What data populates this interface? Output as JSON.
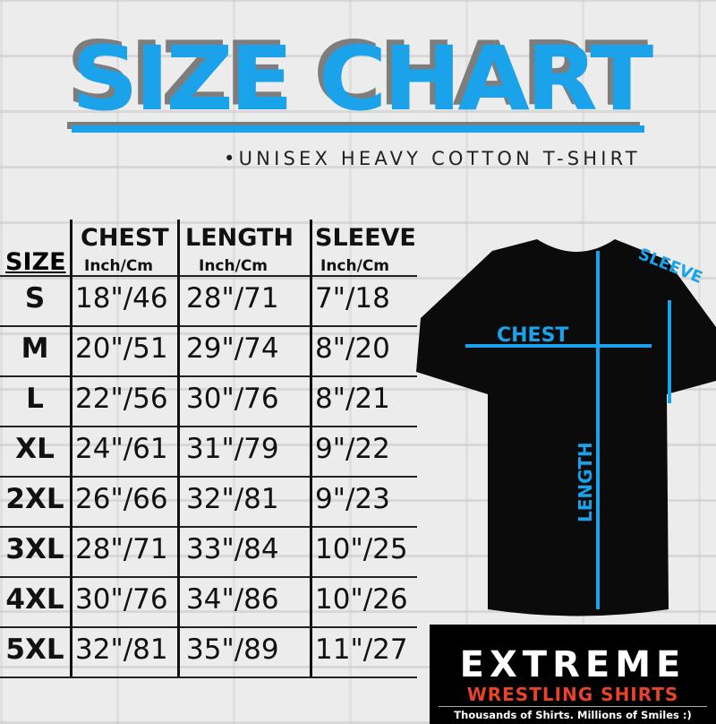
{
  "title": "SIZE CHART",
  "subtitle": "•UNISEX HEAVY COTTON T-SHIRT",
  "accent_color": "#1aa3ea",
  "table": {
    "size_header": "SIZE",
    "columns": [
      {
        "name": "CHEST",
        "unit": "Inch/Cm"
      },
      {
        "name": "LENGTH",
        "unit": "Inch/Cm"
      },
      {
        "name": "SLEEVE",
        "unit": "Inch/Cm"
      }
    ],
    "rows": [
      {
        "size": "S",
        "chest": "18\"/46",
        "length": "28\"/71",
        "sleeve": "7\"/18"
      },
      {
        "size": "M",
        "chest": "20\"/51",
        "length": "29\"/74",
        "sleeve": "8\"/20"
      },
      {
        "size": "L",
        "chest": "22\"/56",
        "length": "30\"/76",
        "sleeve": "8\"/21"
      },
      {
        "size": "XL",
        "chest": "24\"/61",
        "length": "31\"/79",
        "sleeve": "9\"/22"
      },
      {
        "size": "2XL",
        "chest": "26\"/66",
        "length": "32\"/81",
        "sleeve": "9\"/23"
      },
      {
        "size": "3XL",
        "chest": "28\"/71",
        "length": "33\"/84",
        "sleeve": "10\"/25"
      },
      {
        "size": "4XL",
        "chest": "30\"/76",
        "length": "34\"/86",
        "sleeve": "10\"/26"
      },
      {
        "size": "5XL",
        "chest": "32\"/81",
        "length": "35\"/89",
        "sleeve": "11\"/27"
      }
    ]
  },
  "diagram": {
    "chest": "CHEST",
    "length": "LENGTH",
    "sleeve": "SLEEVE"
  },
  "logo": {
    "line1": "EXTREME",
    "line2": "WRESTLING SHIRTS",
    "tagline": "Thousands of Shirts. Millions of Smiles :)"
  }
}
